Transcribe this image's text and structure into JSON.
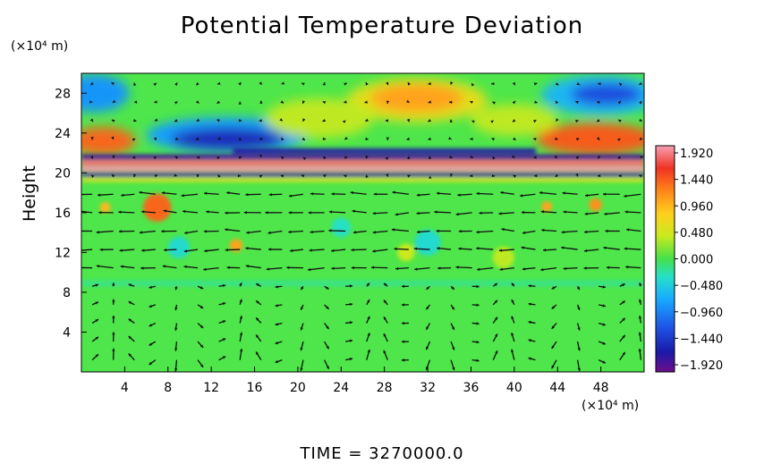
{
  "chart_data": {
    "type": "heatmap",
    "title": "Potential Temperature Deviation",
    "ylabel": "Height",
    "xunit_label": "(×10⁴ m)",
    "yunit_label": "(×10⁴ m)",
    "xlim": [
      0,
      52
    ],
    "ylim": [
      0,
      30
    ],
    "xticks": [
      4,
      8,
      12,
      16,
      20,
      24,
      28,
      32,
      36,
      40,
      44,
      48
    ],
    "yticks": [
      4,
      8,
      12,
      16,
      20,
      24,
      28
    ],
    "colorbar": {
      "ticks": [
        "1.920",
        "1.440",
        "0.960",
        "0.480",
        "0.000",
        "−0.480",
        "−0.960",
        "−1.440",
        "−1.920"
      ],
      "range": [
        -1.92,
        1.92
      ]
    },
    "features": [
      {
        "x": 31,
        "y": 27.3,
        "value": 1.0,
        "desc": "warm anomaly upper middle"
      },
      {
        "x": 48,
        "y": 27.8,
        "value": -1.2,
        "desc": "cold anomaly upper right"
      },
      {
        "x": 1,
        "y": 28,
        "value": -0.9,
        "desc": "cold anomaly upper left"
      },
      {
        "x": 13,
        "y": 23.5,
        "value": -1.5,
        "desc": "cold anomaly near 13, 24"
      },
      {
        "x": 2,
        "y": 23.2,
        "value": 1.5,
        "desc": "warm anomaly left edge"
      },
      {
        "x": 47,
        "y": 23.3,
        "value": 1.6,
        "desc": "warm anomaly right edge"
      },
      {
        "x": 28,
        "y": 22,
        "value": -1.7,
        "desc": "cold arc near 22"
      },
      {
        "x": 26,
        "y": 20.6,
        "value": 1.9,
        "desc": "warm/cold banded layer at 20-21"
      },
      {
        "x": 7,
        "y": 16.5,
        "value": 1.2,
        "desc": "warm blob near 7,16.5"
      }
    ],
    "wind_vectors": "arrow field over whole domain"
  },
  "footer": {
    "time_label": "TIME = 3270000.0"
  }
}
